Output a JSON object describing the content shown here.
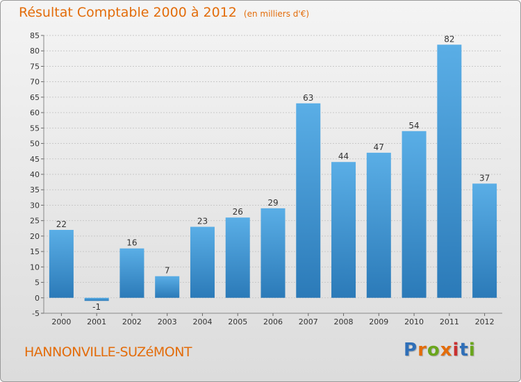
{
  "title": "Résultat Comptable 2000 à 2012",
  "unit_note": "(en milliers d'€)",
  "commune": "HANNONVILLE-SUZéMONT",
  "logo": {
    "text": "Proxiti",
    "letter_colors": [
      "#2f6fb8",
      "#e36c0a",
      "#6aa61c",
      "#e36c0a",
      "#c93030",
      "#2f6fb8",
      "#6aa61c"
    ]
  },
  "colors": {
    "title": "#e36c0a",
    "bar_top": "#5aaee6",
    "bar_bottom": "#2b7ab8",
    "grid": "#c8c8c8",
    "axis_text": "#333333"
  },
  "chart_data": {
    "type": "bar",
    "title": "Résultat Comptable 2000 à 2012",
    "ylabel": "(en milliers d'€)",
    "xlabel": "",
    "categories": [
      "2000",
      "2001",
      "2002",
      "2003",
      "2004",
      "2005",
      "2006",
      "2007",
      "2008",
      "2009",
      "2010",
      "2011",
      "2012"
    ],
    "values": [
      22,
      -1,
      16,
      7,
      23,
      26,
      29,
      63,
      44,
      47,
      54,
      82,
      37
    ],
    "data_labels": [
      "22",
      "-1",
      "16",
      "7",
      "23",
      "26",
      "29",
      "63",
      "44",
      "47",
      "54",
      "82",
      "37"
    ],
    "ylim": [
      -5,
      85
    ],
    "yticks": [
      -5,
      0,
      5,
      10,
      15,
      20,
      25,
      30,
      35,
      40,
      45,
      50,
      55,
      60,
      65,
      70,
      75,
      80,
      85
    ],
    "grid": true,
    "legend": "none"
  }
}
